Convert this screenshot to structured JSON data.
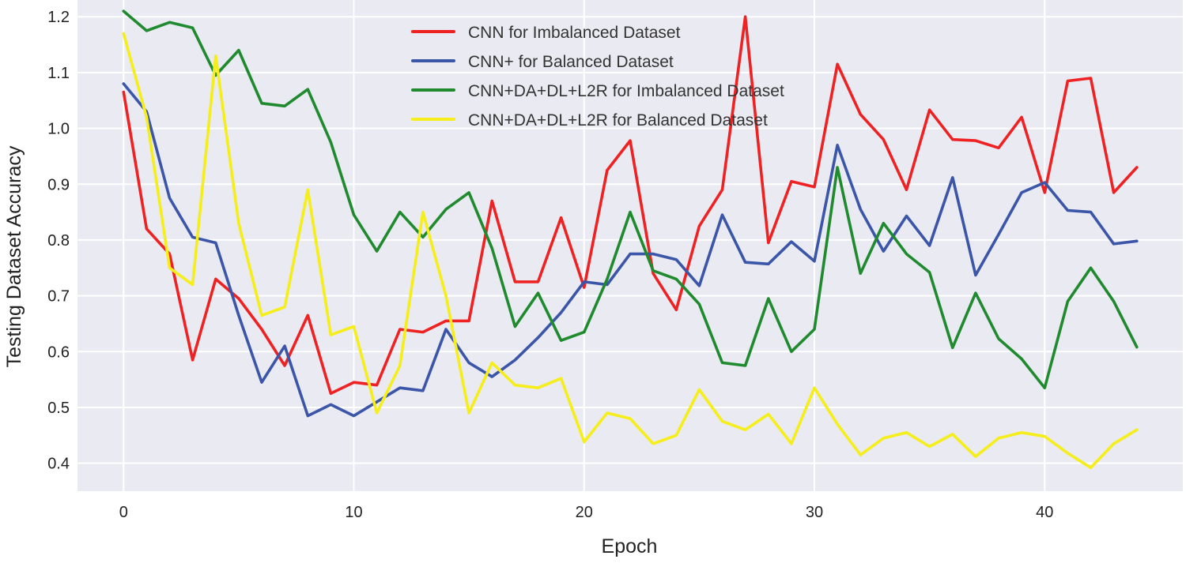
{
  "chart_data": {
    "type": "line",
    "title": "",
    "xlabel": "Epoch",
    "ylabel": "Testing Dataset Accuracy",
    "xlim": [
      -2,
      46
    ],
    "ylim": [
      0.35,
      1.23
    ],
    "xticks": [
      0,
      10,
      20,
      30,
      40
    ],
    "yticks": [
      0.4,
      0.5,
      0.6,
      0.7,
      0.8,
      0.9,
      1.0,
      1.1,
      1.2
    ],
    "ytick_labels": [
      "0.4",
      "0.5",
      "0.6",
      "0.7",
      "0.8",
      "0.9",
      "1.0",
      "1.1",
      "1.2"
    ],
    "grid": true,
    "legend_position": "top-center",
    "x": [
      0,
      1,
      2,
      3,
      4,
      5,
      6,
      7,
      8,
      9,
      10,
      11,
      12,
      13,
      14,
      15,
      16,
      17,
      18,
      19,
      20,
      21,
      22,
      23,
      24,
      25,
      26,
      27,
      28,
      29,
      30,
      31,
      32,
      33,
      34,
      35,
      36,
      37,
      38,
      39,
      40,
      41,
      42,
      43,
      44
    ],
    "series": [
      {
        "name": "CNN for Imbalanced Dataset",
        "color": "#ee2222",
        "values": [
          1.065,
          0.82,
          0.775,
          0.585,
          0.73,
          0.695,
          0.64,
          0.575,
          0.665,
          0.525,
          0.545,
          0.54,
          0.64,
          0.635,
          0.655,
          0.655,
          0.87,
          0.725,
          0.725,
          0.84,
          0.715,
          0.925,
          0.978,
          0.74,
          0.675,
          0.825,
          0.89,
          1.2,
          0.795,
          0.905,
          0.895,
          1.115,
          1.025,
          0.98,
          0.89,
          1.033,
          0.98,
          0.978,
          0.965,
          1.02,
          0.885,
          1.085,
          1.09,
          0.885,
          0.93
        ]
      },
      {
        "name": "CNN+ for Balanced Dataset",
        "color": "#3b55a8",
        "values": [
          1.08,
          1.03,
          0.875,
          0.805,
          0.795,
          0.665,
          0.545,
          0.61,
          0.485,
          0.505,
          0.485,
          0.51,
          0.535,
          0.53,
          0.64,
          0.58,
          0.555,
          0.585,
          0.625,
          0.67,
          0.725,
          0.72,
          0.775,
          0.775,
          0.765,
          0.718,
          0.845,
          0.76,
          0.757,
          0.797,
          0.762,
          0.97,
          0.855,
          0.78,
          0.843,
          0.79,
          0.912,
          0.737,
          0.81,
          0.885,
          0.903,
          0.853,
          0.85,
          0.793,
          0.798
        ]
      },
      {
        "name": "CNN+DA+DL+L2R for Imbalanced Dataset",
        "color": "#1f8a2e",
        "values": [
          1.21,
          1.175,
          1.19,
          1.18,
          1.095,
          1.14,
          1.045,
          1.04,
          1.07,
          0.975,
          0.845,
          0.78,
          0.85,
          0.805,
          0.855,
          0.885,
          0.785,
          0.645,
          0.705,
          0.62,
          0.635,
          0.73,
          0.85,
          0.745,
          0.73,
          0.685,
          0.58,
          0.575,
          0.695,
          0.6,
          0.64,
          0.93,
          0.74,
          0.83,
          0.775,
          0.742,
          0.607,
          0.705,
          0.623,
          0.587,
          0.535,
          0.69,
          0.75,
          0.69,
          0.608
        ]
      },
      {
        "name": "CNN+DA+DL+L2R for Balanced Dataset",
        "color": "#f5ee1a",
        "values": [
          1.17,
          1.02,
          0.75,
          0.72,
          1.13,
          0.83,
          0.665,
          0.68,
          0.89,
          0.63,
          0.645,
          0.49,
          0.575,
          0.85,
          0.7,
          0.49,
          0.58,
          0.54,
          0.535,
          0.552,
          0.438,
          0.49,
          0.48,
          0.435,
          0.45,
          0.532,
          0.475,
          0.46,
          0.488,
          0.435,
          0.535,
          0.47,
          0.415,
          0.445,
          0.455,
          0.43,
          0.452,
          0.412,
          0.445,
          0.455,
          0.448,
          0.418,
          0.392,
          0.435,
          0.46
        ]
      }
    ]
  }
}
